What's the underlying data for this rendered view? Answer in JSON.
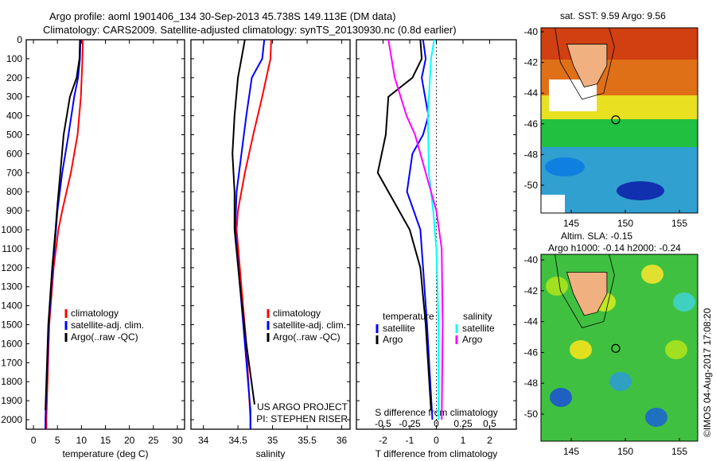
{
  "title": {
    "line1": "Argo profile: aoml 1901406_134 30-Sep-2013 45.738S 149.113E (DM data)",
    "line2": "Climatology: CARS2009. Satellite-adjusted climatology: synTS_20130930.nc (0.8d earlier)"
  },
  "colors": {
    "climatology": "#ff0000",
    "satellite": "#0000ff",
    "argo": "#000000",
    "sat_salinity": "#00ffff",
    "argo_salinity": "#ff00ff"
  },
  "chart_data": [
    {
      "type": "line",
      "xlabel": "temperature (deg C)",
      "xlim": [
        -1.5,
        31.5
      ],
      "xticks": [
        0,
        5,
        10,
        15,
        20,
        25,
        30
      ],
      "ylim": [
        0,
        2050
      ],
      "yticks": [
        0,
        100,
        200,
        300,
        400,
        500,
        600,
        700,
        800,
        900,
        1000,
        1100,
        1200,
        1300,
        1400,
        1500,
        1600,
        1700,
        1800,
        1900,
        2000
      ],
      "legend": [
        "climatology",
        "satellite-adj. clim.",
        "Argo(..raw -QC)"
      ],
      "series": [
        {
          "name": "climatology",
          "color": "#ff0000",
          "depth": [
            0,
            100,
            300,
            500,
            700,
            900,
            1000,
            1200,
            1500,
            2000,
            2050
          ],
          "values": [
            10.3,
            10.2,
            9.9,
            9.2,
            7.8,
            6,
            5.2,
            4.2,
            3.3,
            2.7,
            2.7
          ]
        },
        {
          "name": "satellite-adj. clim.",
          "color": "#0000ff",
          "depth": [
            0,
            100,
            200,
            300,
            500,
            700,
            900,
            1000,
            1200,
            1500,
            2000,
            2050
          ],
          "values": [
            9.8,
            9.7,
            9.3,
            8.5,
            7.3,
            6,
            5,
            4.7,
            4,
            3.2,
            2.5,
            2.5
          ]
        },
        {
          "name": "Argo(..raw -QC)",
          "color": "#000000",
          "depth": [
            0,
            100,
            200,
            300,
            500,
            700,
            900,
            1000,
            1200,
            1500,
            1950
          ],
          "values": [
            9.7,
            9.6,
            9,
            7.6,
            6.3,
            5.6,
            4.9,
            4.6,
            3.9,
            3.1,
            2.5
          ]
        }
      ]
    },
    {
      "type": "line",
      "xlabel": "salinity",
      "xlim": [
        33.82,
        36.12
      ],
      "xticks": [
        34,
        34.5,
        35,
        35.5,
        36
      ],
      "ylim": [
        0,
        2050
      ],
      "legend": [
        "climatology",
        "satellite-adj. clim.",
        "Argo(..raw -QC)"
      ],
      "annotations": [
        "US ARGO PROJECT",
        "PI: STEPHEN RISER"
      ],
      "series": [
        {
          "name": "climatology",
          "color": "#ff0000",
          "depth": [
            0,
            100,
            300,
            500,
            700,
            900,
            1000,
            1300,
            1600,
            2000,
            2050
          ],
          "values": [
            34.98,
            34.97,
            34.85,
            34.72,
            34.6,
            34.5,
            34.48,
            34.55,
            34.62,
            34.68,
            34.68
          ]
        },
        {
          "name": "satellite-adj. clim.",
          "color": "#0000ff",
          "depth": [
            0,
            100,
            200,
            400,
            600,
            800,
            1000,
            1300,
            1600,
            1950,
            2050
          ],
          "values": [
            34.88,
            34.85,
            34.7,
            34.62,
            34.55,
            34.48,
            34.46,
            34.53,
            34.6,
            34.68,
            34.68
          ]
        },
        {
          "name": "Argo(..raw -QC)",
          "color": "#000000",
          "depth": [
            0,
            100,
            200,
            400,
            600,
            800,
            1000,
            1300,
            1600,
            1920
          ],
          "values": [
            34.6,
            34.55,
            34.5,
            34.45,
            34.42,
            34.45,
            34.45,
            34.53,
            34.62,
            34.74
          ]
        }
      ]
    },
    {
      "type": "line",
      "xlabel": "T difference from climatology",
      "x2label": "S difference from climatology",
      "xlim": [
        -3,
        3
      ],
      "xticks": [
        -2,
        -1,
        0,
        1,
        2
      ],
      "x2ticks": [
        -0.5,
        -0.25,
        0,
        0.25,
        0.5
      ],
      "x2ticklabels": [
        "-0.5",
        "-0.25",
        "0",
        "0.25",
        "0.5"
      ],
      "ylim": [
        0,
        2050
      ],
      "legend": {
        "temperature": "temperature",
        "salinity": "salinity",
        "satellite": "satellite",
        "argo": "Argo"
      },
      "series": [
        {
          "name": "T satellite",
          "var": "T",
          "color": "#0000ff",
          "depth": [
            0,
            100,
            200,
            400,
            500,
            600,
            800,
            1000,
            1200,
            1500,
            2000
          ],
          "values": [
            -0.5,
            -0.4,
            -0.55,
            -0.3,
            -0.5,
            -0.9,
            -1.1,
            -0.6,
            -0.5,
            -0.35,
            -0.15
          ]
        },
        {
          "name": "T Argo",
          "var": "T",
          "color": "#000000",
          "depth": [
            0,
            100,
            200,
            300,
            500,
            700,
            800,
            1000,
            1200,
            1500,
            1950
          ],
          "values": [
            -0.6,
            -0.55,
            -0.9,
            -1.8,
            -1.9,
            -2.2,
            -1.8,
            -1.0,
            -0.6,
            -0.4,
            -0.2
          ]
        },
        {
          "name": "S satellite",
          "var": "S",
          "color": "#00ffff",
          "depth": [
            0,
            100,
            400,
            700,
            900,
            1100,
            1500,
            2000
          ],
          "values": [
            -0.02,
            -0.05,
            -0.08,
            -0.07,
            -0.03,
            0,
            0.02,
            0.02
          ]
        },
        {
          "name": "S Argo",
          "var": "S",
          "color": "#ff00ff",
          "depth": [
            0,
            200,
            400,
            500,
            700,
            900,
            1100,
            1500,
            2000
          ],
          "values": [
            -0.45,
            -0.39,
            -0.28,
            -0.2,
            -0.1,
            0,
            0.05,
            0.06,
            0.05
          ]
        }
      ]
    }
  ],
  "maps": [
    {
      "title": "sat. SST: 9.59 Argo: 9.56",
      "lat_ticks": [
        "-40",
        "-42",
        "-44",
        "-46",
        "-48",
        "-50"
      ],
      "lon_ticks": [
        "145",
        "150",
        "155"
      ]
    },
    {
      "title1": "Altim. SLA: -0.15",
      "title2": "Argo h1000: -0.14 h2000: -0.24",
      "lat_ticks": [
        "-40",
        "-42",
        "-44",
        "-46",
        "-48",
        "-50"
      ],
      "lon_ticks": [
        "145",
        "150",
        "155"
      ]
    }
  ],
  "credit": "©IMOS 04-Aug-2017 17:08:20"
}
